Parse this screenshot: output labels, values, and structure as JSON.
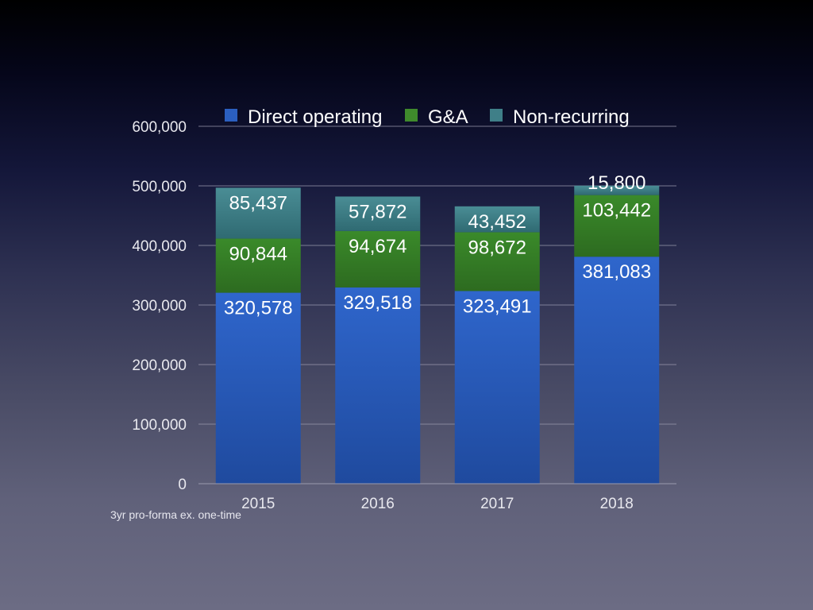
{
  "chart_data": {
    "type": "bar",
    "stacked": true,
    "categories": [
      "2015",
      "2016",
      "2017",
      "2018"
    ],
    "series": [
      {
        "name": "Direct operating",
        "values": [
          320578,
          329518,
          323491,
          381083
        ],
        "color": "#2b5fc0"
      },
      {
        "name": "G&A",
        "values": [
          90844,
          94674,
          98672,
          103442
        ],
        "color": "#3f8a2c"
      },
      {
        "name": "Non-recurring",
        "values": [
          85437,
          57872,
          43452,
          15800
        ],
        "color": "#3f7f88"
      }
    ],
    "data_labels": [
      [
        "320,578",
        "329,518",
        "323,491",
        "381,083"
      ],
      [
        "90,844",
        "94,674",
        "98,672",
        "103,442"
      ],
      [
        "85,437",
        "57,872",
        "43,452",
        "15,800"
      ]
    ],
    "y_ticks": [
      "0",
      "100,000",
      "200,000",
      "300,000",
      "400,000",
      "500,000",
      "600,000"
    ],
    "ylim": [
      0,
      600000
    ],
    "grid": true,
    "legend_position": "top",
    "title": "",
    "xlabel": "",
    "ylabel": ""
  },
  "footnote": "3yr pro-forma ex. one-time"
}
